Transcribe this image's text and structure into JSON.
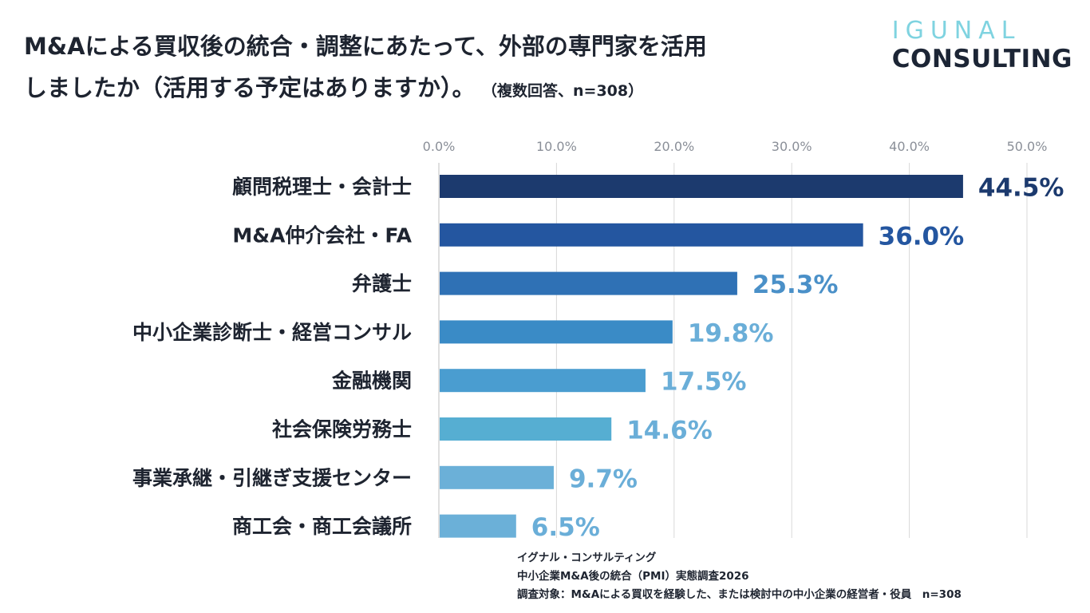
{
  "header": {
    "title_line1": "M&Aによる買収後の統合・調整にあたって、外部の専門家を活用",
    "title_line2": "しましたか（活用する予定はありますか）。",
    "title_note": "（複数回答、n=308）"
  },
  "logo": {
    "line1": "IGUNAL",
    "line2": "CONSULTING"
  },
  "chart_data": {
    "type": "bar",
    "orientation": "horizontal",
    "categories": [
      "顧問税理士・会計士",
      "M&A仲介会社・FA",
      "弁護士",
      "中小企業診断士・経営コンサル",
      "金融機関",
      "社会保険労務士",
      "事業承継・引継ぎ支援センター",
      "商工会・商工会議所"
    ],
    "values": [
      44.5,
      36.0,
      25.3,
      19.8,
      17.5,
      14.6,
      9.7,
      6.5
    ],
    "value_labels": [
      "44.5%",
      "36.0%",
      "25.3%",
      "19.8%",
      "17.5%",
      "14.6%",
      "9.7%",
      "6.5%"
    ],
    "xlim": [
      0,
      50
    ],
    "x_ticks": [
      "0.0%",
      "10.0%",
      "20.0%",
      "30.0%",
      "40.0%",
      "50.0%"
    ],
    "x_tick_values": [
      0,
      10,
      20,
      30,
      40,
      50
    ],
    "bar_colors": [
      "#1c3a6e",
      "#2456a0",
      "#2f71b5",
      "#3a8bc6",
      "#4a9dd0",
      "#56aed2",
      "#6bb0d8",
      "#6bb0d8"
    ],
    "label_colors": [
      "#1c3a6e",
      "#2456a0",
      "#4a90c8",
      "#6aaed8",
      "#6aaed8",
      "#6aaed8",
      "#6aaed8",
      "#6aaed8"
    ],
    "grid": true,
    "grid_color": "#d9d9d9"
  },
  "footer": {
    "line1": "イグナル・コンサルティング",
    "line2": "中小企業M&A後の統合（PMI）実態調査2026",
    "line3": "調査対象：M&Aによる買収を経験した、または検討中の中小企業の経営者・役員　n=308"
  }
}
